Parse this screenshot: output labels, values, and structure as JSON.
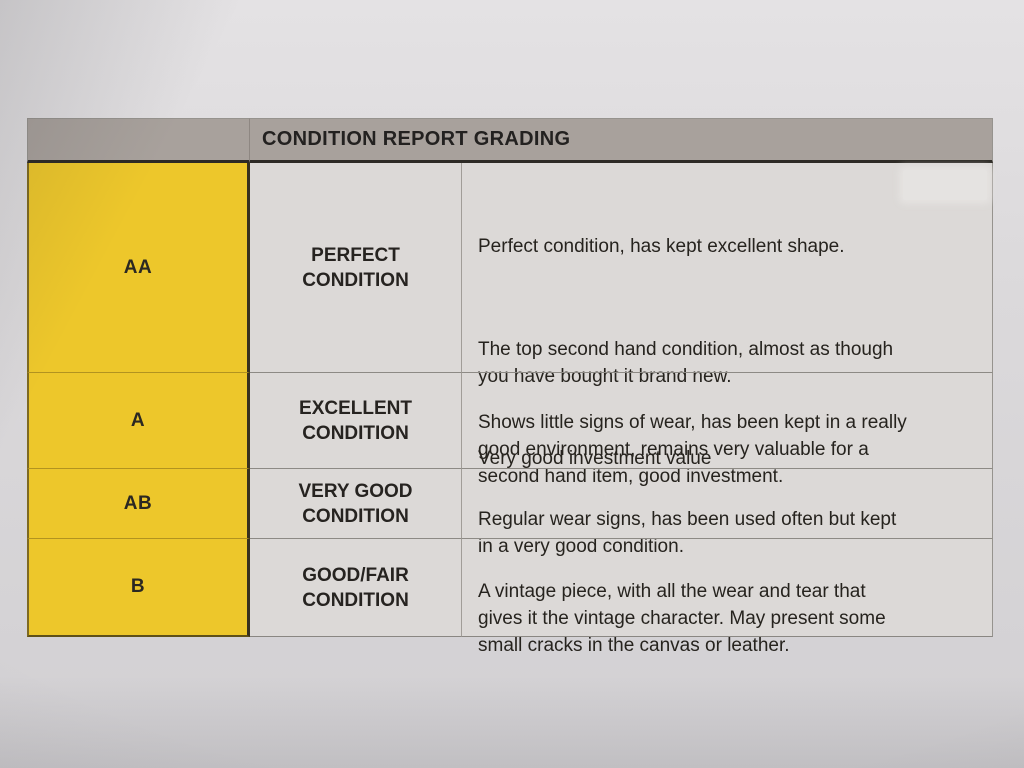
{
  "document": {
    "title": "CONDITION REPORT GRADING",
    "rows": [
      {
        "code": "AA",
        "grade": "PERFECT\nCONDITION",
        "paragraphs": [
          "Perfect condition, has kept excellent shape.",
          "The top second hand condition, almost as though\nyou have bought it brand new.",
          "Very good investment value"
        ]
      },
      {
        "code": "A",
        "grade": "EXCELLENT\nCONDITION",
        "paragraphs": [
          "Shows little signs of wear, has been kept in a really\ngood environment, remains very valuable for a\nsecond hand item, good investment."
        ]
      },
      {
        "code": "AB",
        "grade": "VERY GOOD\nCONDITION",
        "paragraphs": [
          "Regular wear signs, has been used often but kept\nin a very good condition."
        ]
      },
      {
        "code": "B",
        "grade": "GOOD/FAIR\nCONDITION",
        "paragraphs": [
          "A vintage piece, with all the wear and tear that\ngives it the vintage character. May present some\nsmall cracks in the canvas or leather."
        ]
      }
    ],
    "colors": {
      "highlight": "#edc72b",
      "header_bg": "#a8a19c",
      "ink": "#272420"
    }
  }
}
